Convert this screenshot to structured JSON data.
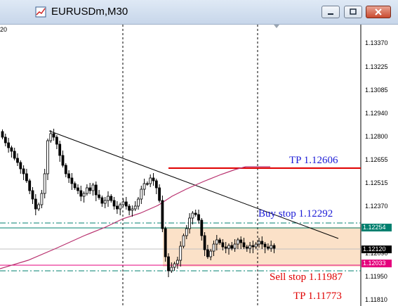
{
  "window": {
    "title": "EURUSDm,M30",
    "minimize_icon": "minimize-icon",
    "maximize_icon": "maximize-icon",
    "close_icon": "close-icon"
  },
  "chart": {
    "symbol": "EURUSDm",
    "timeframe": "M30",
    "corner_label": "20",
    "price_scale": [
      "1.13370",
      "1.13225",
      "1.13085",
      "1.12940",
      "1.12800",
      "1.12655",
      "1.12515",
      "1.12370",
      "1.12090",
      "1.11950",
      "1.11810"
    ],
    "price_tags": {
      "upper": "1.12254",
      "current": "1.12120",
      "lower": "1.12033"
    },
    "annotations": {
      "tp_upper": "TP  1.12606",
      "buy_stop": "Buy stop  1.12292",
      "sell_stop": "Sell stop  1.11987",
      "tp_lower": "TP  1.11773"
    },
    "colors": {
      "bull_candle": "#ffffff",
      "bear_candle": "#000000",
      "moving_average": "#b8306e",
      "tp_line": "#e00000",
      "range_box": "#fbe1c8",
      "teal_level": "#00806f",
      "magenta_level": "#e5007d",
      "buy_text": "#1b1bd6"
    }
  }
}
